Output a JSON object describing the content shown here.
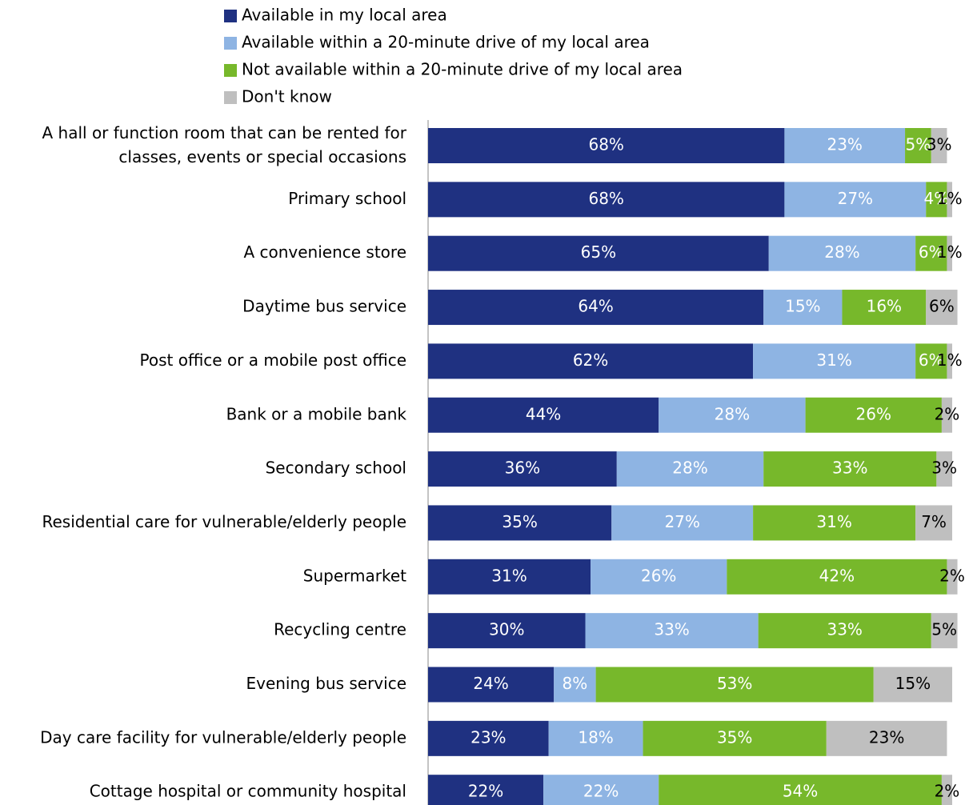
{
  "chart_data": {
    "type": "stacked_barh",
    "categories": [
      "A hall or function room that can be rented for classes, events or special occasions",
      "Primary school",
      "A convenience store",
      "Daytime bus service",
      "Post office or a mobile post office",
      "Bank or a mobile bank",
      "Secondary school",
      "Residential care for vulnerable/elderly people",
      "Supermarket",
      "Recycling centre",
      "Evening bus service",
      "Day care facility for vulnerable/elderly people",
      "Cottage hospital or community hospital"
    ],
    "series": [
      {
        "name": "Available in my local area",
        "color": "#1f3181",
        "label_color": "#ffffff",
        "values": [
          68,
          68,
          65,
          64,
          62,
          44,
          36,
          35,
          31,
          30,
          24,
          23,
          22
        ],
        "value_labels": [
          "68%",
          "68%",
          "65%",
          "64%",
          "62%",
          "44%",
          "36%",
          "35%",
          "31%",
          "30%",
          "24%",
          "23%",
          "22%"
        ]
      },
      {
        "name": "Available within a 20-minute drive of my local area",
        "color": "#8eb4e3",
        "label_color": "#ffffff",
        "values": [
          23,
          27,
          28,
          15,
          31,
          28,
          28,
          27,
          26,
          33,
          8,
          18,
          22
        ],
        "value_labels": [
          "23%",
          "27%",
          "28%",
          "15%",
          "31%",
          "28%",
          "28%",
          "27%",
          "26%",
          "33%",
          "8%",
          "18%",
          "22%"
        ]
      },
      {
        "name": "Not available within a 20-minute drive of my local area",
        "color": "#77b82b",
        "label_color": "#ffffff",
        "values": [
          5,
          4,
          6,
          16,
          6,
          26,
          33,
          31,
          42,
          33,
          53,
          35,
          54
        ],
        "value_labels": [
          "5%",
          "4%",
          "6%",
          "16%",
          "6%",
          "26%",
          "33%",
          "31%",
          "42%",
          "33%",
          "53%",
          "35%",
          "54%"
        ]
      },
      {
        "name": "Don't know",
        "color": "#bfbfbf",
        "label_color": "#000000",
        "values": [
          3,
          1,
          1,
          6,
          1,
          2,
          3,
          7,
          2,
          5,
          15,
          23,
          2
        ],
        "value_labels": [
          "3%",
          "1%",
          "1%",
          "6%",
          "1%",
          "2%",
          "3%",
          "7%",
          "2%",
          "5%",
          "15%",
          "23%",
          "2%"
        ]
      }
    ],
    "xlim": [
      0,
      100
    ]
  }
}
